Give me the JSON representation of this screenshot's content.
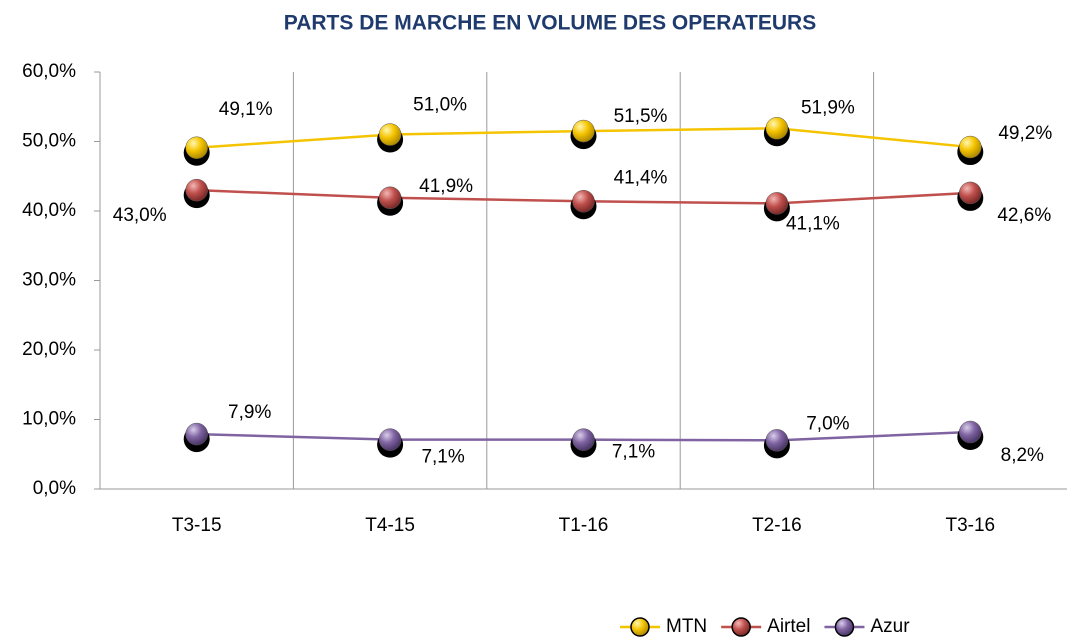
{
  "chart_data": {
    "type": "line",
    "title": "PARTS DE MARCHE EN VOLUME DES OPERATEURS",
    "categories": [
      "T3-15",
      "T4-15",
      "T1-16",
      "T2-16",
      "T3-16"
    ],
    "series": [
      {
        "name": "MTN",
        "color": "#f5c400",
        "values": [
          49.1,
          51.0,
          51.5,
          51.9,
          49.2
        ],
        "value_labels": [
          "49,1%",
          "51,0%",
          "51,5%",
          "51,9%",
          "49,2%"
        ]
      },
      {
        "name": "Airtel",
        "color": "#c0504d",
        "values": [
          43.0,
          41.9,
          41.4,
          41.1,
          42.6
        ],
        "value_labels": [
          "43,0%",
          "41,9%",
          "41,4%",
          "41,1%",
          "42,6%"
        ]
      },
      {
        "name": "Azur",
        "color": "#8064a2",
        "values": [
          7.9,
          7.1,
          7.1,
          7.0,
          8.2
        ],
        "value_labels": [
          "7,9%",
          "7,1%",
          "7,1%",
          "7,0%",
          "8,2%"
        ]
      }
    ],
    "ylim": [
      0,
      60
    ],
    "yticks": [
      {
        "value": 0,
        "label": "0,0%"
      },
      {
        "value": 10,
        "label": "10,0%"
      },
      {
        "value": 20,
        "label": "20,0%"
      },
      {
        "value": 30,
        "label": "30,0%"
      },
      {
        "value": 40,
        "label": "40,0%"
      },
      {
        "value": 50,
        "label": "50,0%"
      },
      {
        "value": 60,
        "label": "60,0%"
      }
    ],
    "legend": "bottom"
  }
}
